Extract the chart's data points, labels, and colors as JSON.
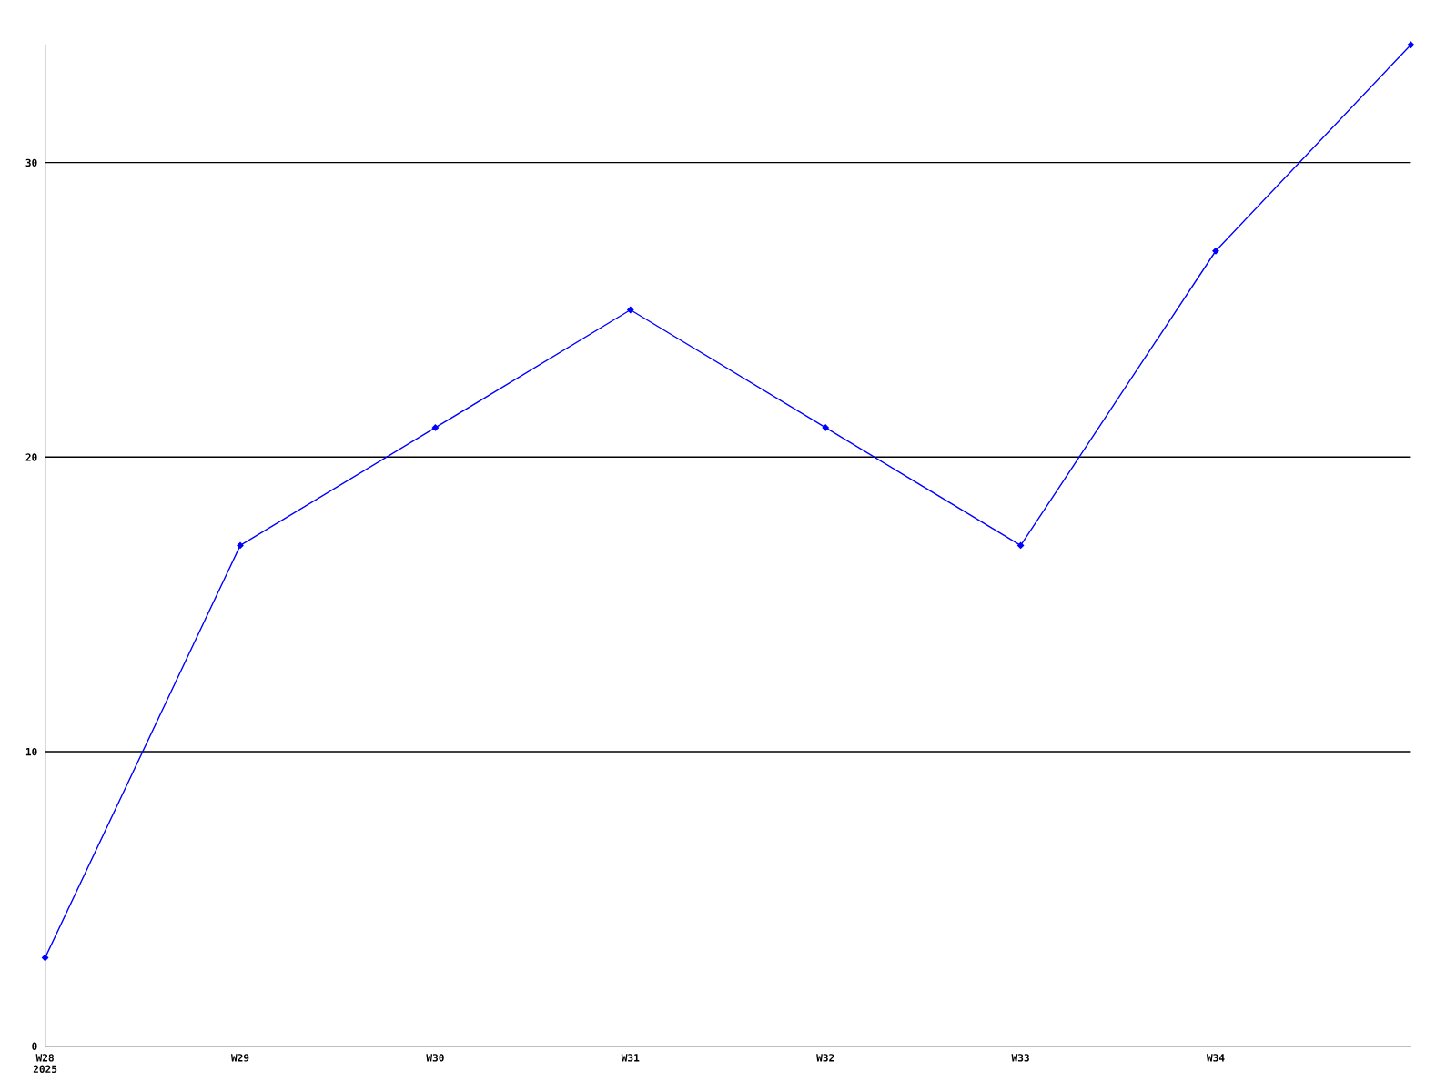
{
  "chart_data": {
    "type": "line",
    "categories": [
      "W28\n2025",
      "W29",
      "W30",
      "W31",
      "W32",
      "W33",
      "W34",
      null
    ],
    "series": [
      {
        "color": "#0000ff",
        "values": [
          3,
          17,
          21,
          25,
          21,
          17,
          27,
          34
        ]
      }
    ],
    "ylim": [
      0,
      34
    ],
    "yticks": [
      0,
      10,
      20,
      30
    ],
    "grid": "y",
    "marker": "diamond",
    "line_style": "solid"
  }
}
